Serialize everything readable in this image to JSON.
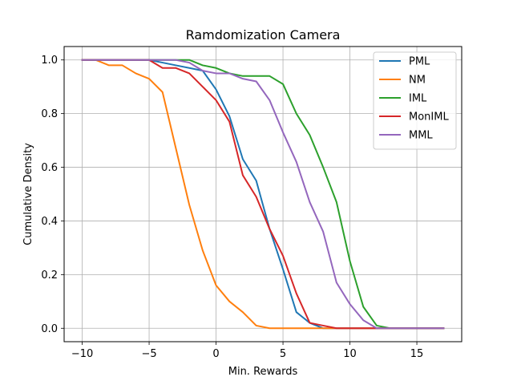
{
  "chart_data": {
    "type": "line",
    "title": "Ramdomization Camera",
    "xlabel": "Min. Rewards",
    "ylabel": "Cumulative Density",
    "xlim": [
      -11.35,
      18.35
    ],
    "ylim": [
      -0.05,
      1.05
    ],
    "xticks": [
      -10,
      -5,
      0,
      5,
      10,
      15
    ],
    "yticks": [
      0.0,
      0.2,
      0.4,
      0.6,
      0.8,
      1.0
    ],
    "xtick_labels": [
      "−10",
      "−5",
      "0",
      "5",
      "10",
      "15"
    ],
    "ytick_labels": [
      "0.0",
      "0.2",
      "0.4",
      "0.6",
      "0.8",
      "1.0"
    ],
    "grid": true,
    "legend_position": "top-right",
    "series": [
      {
        "name": "PML",
        "color": "#1f77b4",
        "x": [
          -10,
          -9,
          -8,
          -7,
          -6,
          -5,
          -4,
          -3,
          -2,
          -1,
          0,
          1,
          2,
          3,
          4,
          5,
          6,
          7,
          8,
          9,
          10,
          11,
          12,
          13,
          14,
          15,
          16,
          17
        ],
        "y": [
          1.0,
          1.0,
          1.0,
          1.0,
          1.0,
          1.0,
          0.99,
          0.98,
          0.97,
          0.96,
          0.89,
          0.79,
          0.63,
          0.55,
          0.37,
          0.22,
          0.06,
          0.02,
          0.0,
          0.0,
          0.0,
          0.0,
          0.0,
          0.0,
          0.0,
          0.0,
          0.0,
          0.0
        ]
      },
      {
        "name": "NM",
        "color": "#ff7f0e",
        "x": [
          -10,
          -9,
          -8,
          -7,
          -6,
          -5,
          -4,
          -3,
          -2,
          -1,
          0,
          1,
          2,
          3,
          4,
          5,
          6,
          7,
          8,
          9,
          10,
          11,
          12,
          13,
          14,
          15,
          16,
          17
        ],
        "y": [
          1.0,
          1.0,
          0.98,
          0.98,
          0.95,
          0.93,
          0.88,
          0.67,
          0.46,
          0.29,
          0.16,
          0.1,
          0.06,
          0.01,
          0.0,
          0.0,
          0.0,
          0.0,
          0.0,
          0.0,
          0.0,
          0.0,
          0.0,
          0.0,
          0.0,
          0.0,
          0.0,
          0.0
        ]
      },
      {
        "name": "IML",
        "color": "#2ca02c",
        "x": [
          -10,
          -9,
          -8,
          -7,
          -6,
          -5,
          -4,
          -3,
          -2,
          -1,
          0,
          1,
          2,
          3,
          4,
          5,
          6,
          7,
          8,
          9,
          10,
          11,
          12,
          13,
          14,
          15,
          16,
          17
        ],
        "y": [
          1.0,
          1.0,
          1.0,
          1.0,
          1.0,
          1.0,
          1.0,
          1.0,
          1.0,
          0.98,
          0.97,
          0.95,
          0.94,
          0.94,
          0.94,
          0.91,
          0.8,
          0.72,
          0.6,
          0.47,
          0.25,
          0.08,
          0.01,
          0.0,
          0.0,
          0.0,
          0.0,
          0.0
        ]
      },
      {
        "name": "MonIML",
        "color": "#d62728",
        "x": [
          -10,
          -9,
          -8,
          -7,
          -6,
          -5,
          -4,
          -3,
          -2,
          -1,
          0,
          1,
          2,
          3,
          4,
          5,
          6,
          7,
          8,
          9,
          10,
          11,
          12,
          13,
          14,
          15,
          16,
          17
        ],
        "y": [
          1.0,
          1.0,
          1.0,
          1.0,
          1.0,
          1.0,
          0.97,
          0.97,
          0.95,
          0.9,
          0.85,
          0.77,
          0.57,
          0.49,
          0.37,
          0.27,
          0.13,
          0.02,
          0.01,
          0.0,
          0.0,
          0.0,
          0.0,
          0.0,
          0.0,
          0.0,
          0.0,
          0.0
        ]
      },
      {
        "name": "MML",
        "color": "#9467bd",
        "x": [
          -10,
          -9,
          -8,
          -7,
          -6,
          -5,
          -4,
          -3,
          -2,
          -1,
          0,
          1,
          2,
          3,
          4,
          5,
          6,
          7,
          8,
          9,
          10,
          11,
          12,
          13,
          14,
          15,
          16,
          17
        ],
        "y": [
          1.0,
          1.0,
          1.0,
          1.0,
          1.0,
          1.0,
          1.0,
          1.0,
          0.99,
          0.96,
          0.95,
          0.95,
          0.93,
          0.92,
          0.85,
          0.73,
          0.62,
          0.47,
          0.36,
          0.17,
          0.09,
          0.03,
          0.0,
          0.0,
          0.0,
          0.0,
          0.0,
          0.0
        ]
      }
    ]
  }
}
